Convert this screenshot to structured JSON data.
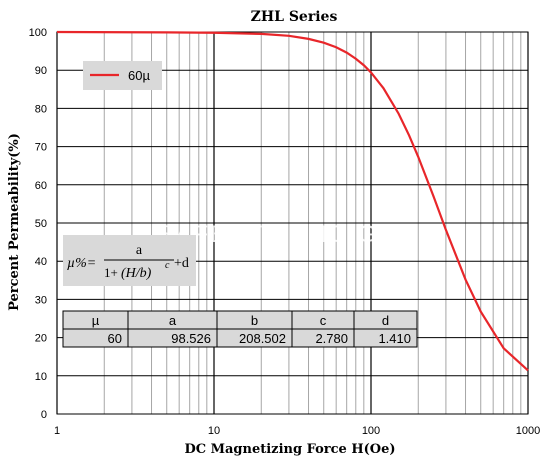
{
  "chart_data": {
    "type": "line",
    "title": "ZHL Series",
    "xlabel": "DC Magnetizing Force H(Oe)",
    "ylabel": "Percent Permeability(%)",
    "x_scale": "log",
    "xlim": [
      1,
      1000
    ],
    "ylim": [
      0,
      100
    ],
    "x_ticks": [
      "1",
      "10",
      "100",
      "1000"
    ],
    "y_ticks": [
      "0",
      "10",
      "20",
      "30",
      "40",
      "50",
      "60",
      "70",
      "80",
      "90",
      "100"
    ],
    "grid": true,
    "legend_position": "top-left",
    "series": [
      {
        "name": "60µ",
        "color": "#e8262a",
        "x": [
          1,
          5,
          10,
          20,
          30,
          40,
          50,
          60,
          70,
          80,
          90,
          100,
          120,
          150,
          175,
          200,
          250,
          300,
          400,
          500,
          700,
          1000
        ],
        "y": [
          100.0,
          99.9,
          99.8,
          99.5,
          99.0,
          98.2,
          97.2,
          96.0,
          94.6,
          93.0,
          91.3,
          89.4,
          85.3,
          78.6,
          72.9,
          67.3,
          57.0,
          48.2,
          35.2,
          26.8,
          17.2,
          11.4
        ]
      }
    ],
    "formula": {
      "lhs": "µ%=",
      "numerator": "a",
      "denominator_prefix": "1+",
      "denominator_base": "(H/b)",
      "exponent": "c",
      "suffix": "+d"
    },
    "parameter_table": {
      "headers": [
        "µ",
        "a",
        "b",
        "c",
        "d"
      ],
      "rows": [
        [
          "60",
          "98.526",
          "208.502",
          "2.780",
          "1.410"
        ]
      ]
    },
    "watermark": "SAFENT YUNG G"
  }
}
